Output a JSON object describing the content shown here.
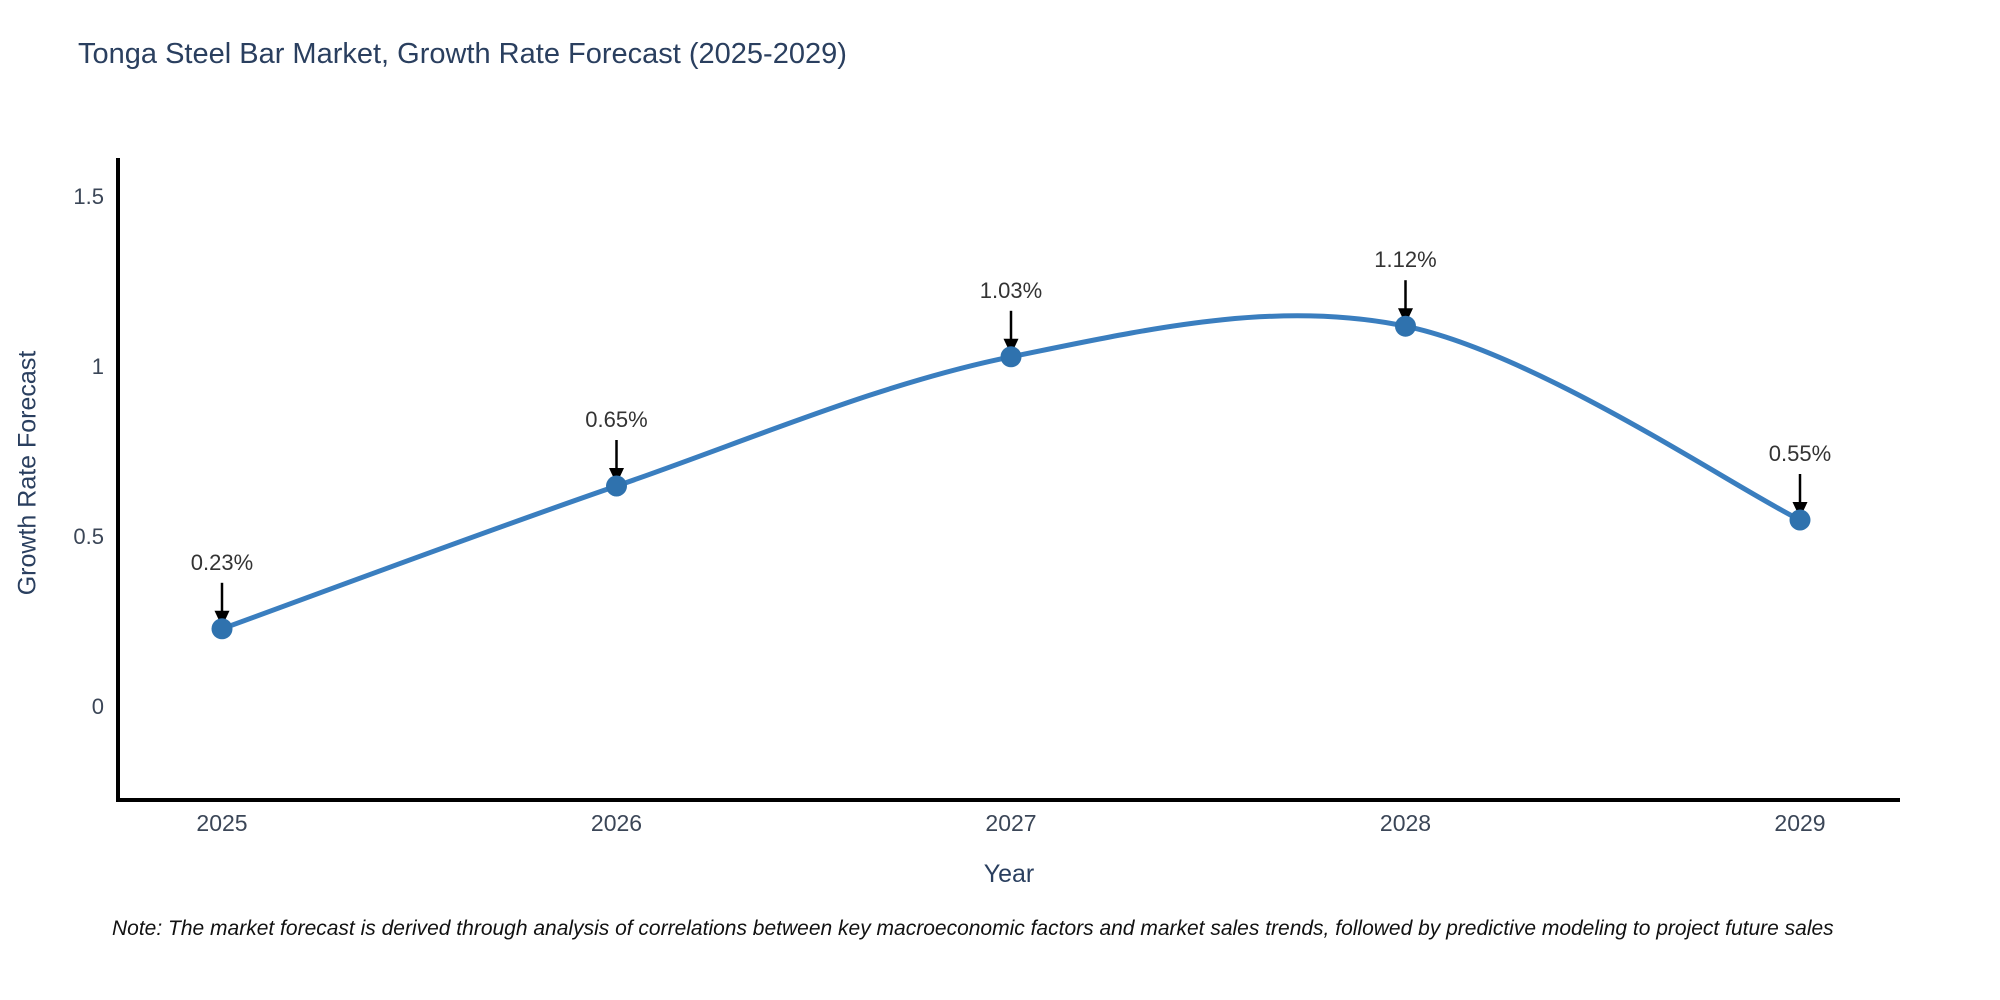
{
  "title": "Tonga Steel Bar Market, Growth Rate Forecast (2025-2029)",
  "note": "Note: The market forecast is derived through analysis of correlations between key macroeconomic factors and market sales trends, followed by predictive modeling to project future sales",
  "chart_data": {
    "type": "line",
    "title": "Tonga Steel Bar Market, Growth Rate Forecast (2025-2029)",
    "x": [
      2025,
      2026,
      2027,
      2028,
      2029
    ],
    "x_tick_labels": [
      "2025",
      "2026",
      "2027",
      "2028",
      "2029"
    ],
    "series": [
      {
        "name": "Growth Rate Forecast",
        "values": [
          0.23,
          0.65,
          1.03,
          1.12,
          0.55
        ]
      }
    ],
    "point_labels": [
      "0.23%",
      "0.65%",
      "1.03%",
      "1.12%",
      "0.55%"
    ],
    "xlabel": "Year",
    "ylabel": "Growth Rate Forecast",
    "y_ticks": [
      0,
      0.5,
      1,
      1.5
    ],
    "y_tick_labels": [
      "0",
      "0.5",
      "1",
      "1.5"
    ],
    "ylim": [
      -0.28,
      1.61
    ],
    "line_shape": "spline",
    "grid": false,
    "markers": true,
    "annotation_arrows": true,
    "legend": "none",
    "colors": {
      "line": "#3a7ebf",
      "marker": "#2f72ae",
      "arrow": "#000000",
      "axis_line": "#000000",
      "title_text": "#2a3f5f",
      "tick_text": "#3b4657"
    }
  }
}
